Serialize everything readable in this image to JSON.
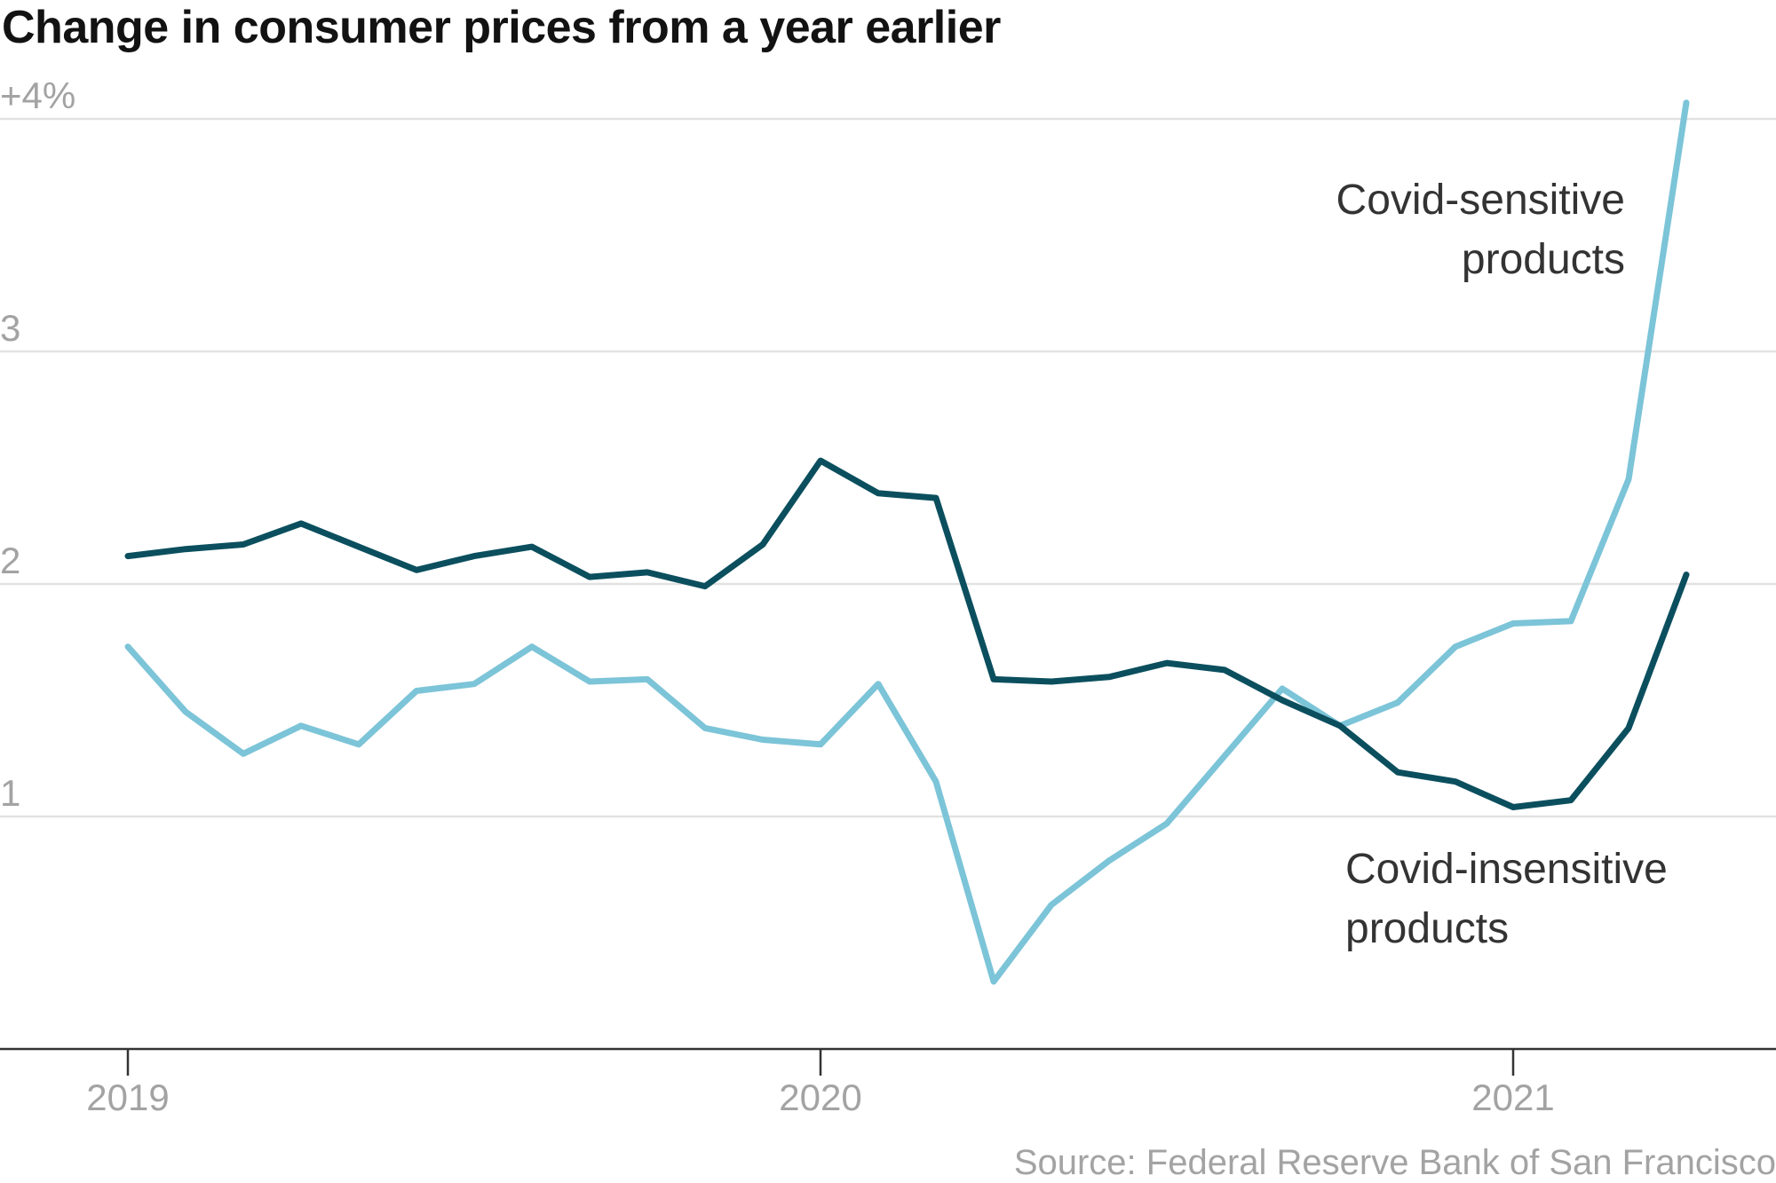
{
  "chart_data": {
    "type": "line",
    "title": "Change in consumer prices from a year earlier",
    "source": "Source: Federal Reserve Bank of San Francisco",
    "x": [
      "2019-01",
      "2019-02",
      "2019-03",
      "2019-04",
      "2019-05",
      "2019-06",
      "2019-07",
      "2019-08",
      "2019-09",
      "2019-10",
      "2019-11",
      "2019-12",
      "2020-01",
      "2020-02",
      "2020-03",
      "2020-04",
      "2020-05",
      "2020-06",
      "2020-07",
      "2020-08",
      "2020-09",
      "2020-10",
      "2020-11",
      "2020-12",
      "2021-01",
      "2021-02",
      "2021-03",
      "2021-04"
    ],
    "xticks": [
      {
        "value": "2019-01",
        "label": "2019"
      },
      {
        "value": "2020-01",
        "label": "2020"
      },
      {
        "value": "2021-01",
        "label": "2021"
      }
    ],
    "yticks": [
      {
        "value": 1,
        "label": "1"
      },
      {
        "value": 2,
        "label": "2"
      },
      {
        "value": 3,
        "label": "3"
      },
      {
        "value": 4,
        "label": "+4%"
      }
    ],
    "ylim": [
      0,
      4
    ],
    "grid": true,
    "series": [
      {
        "name": "Covid-sensitive products",
        "label_lines": [
          "Covid-sensitive",
          "products"
        ],
        "color": "#7cc4d8",
        "values": [
          1.73,
          1.45,
          1.27,
          1.39,
          1.31,
          1.54,
          1.57,
          1.73,
          1.58,
          1.59,
          1.38,
          1.33,
          1.31,
          1.57,
          1.15,
          0.29,
          0.62,
          0.81,
          0.97,
          1.26,
          1.55,
          1.39,
          1.49,
          1.73,
          1.83,
          1.84,
          2.45,
          4.07
        ]
      },
      {
        "name": "Covid-insensitive products",
        "label_lines": [
          "Covid-insensitive",
          "products"
        ],
        "color": "#0b4f5e",
        "values": [
          2.12,
          2.15,
          2.17,
          2.26,
          2.16,
          2.06,
          2.12,
          2.16,
          2.03,
          2.05,
          1.99,
          2.17,
          2.53,
          2.39,
          2.37,
          1.59,
          1.58,
          1.6,
          1.66,
          1.63,
          1.5,
          1.39,
          1.19,
          1.15,
          1.04,
          1.07,
          1.38,
          2.04
        ]
      }
    ]
  }
}
